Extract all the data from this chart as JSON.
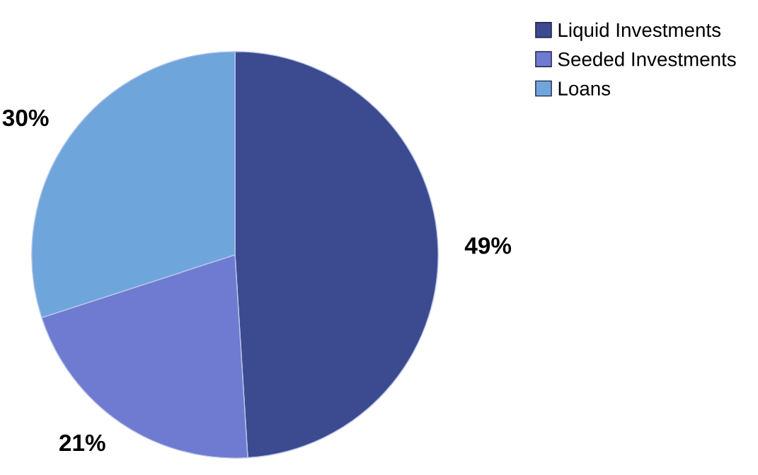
{
  "chart_data": {
    "type": "pie",
    "categories": [
      "Liquid Investments",
      "Seeded Investments",
      "Loans"
    ],
    "values": [
      49,
      21,
      30
    ],
    "colors": [
      "#3c4a90",
      "#6f7bd0",
      "#6ea6dc"
    ],
    "value_labels": [
      "49%",
      "21%",
      "30%"
    ],
    "legend": "top right"
  }
}
